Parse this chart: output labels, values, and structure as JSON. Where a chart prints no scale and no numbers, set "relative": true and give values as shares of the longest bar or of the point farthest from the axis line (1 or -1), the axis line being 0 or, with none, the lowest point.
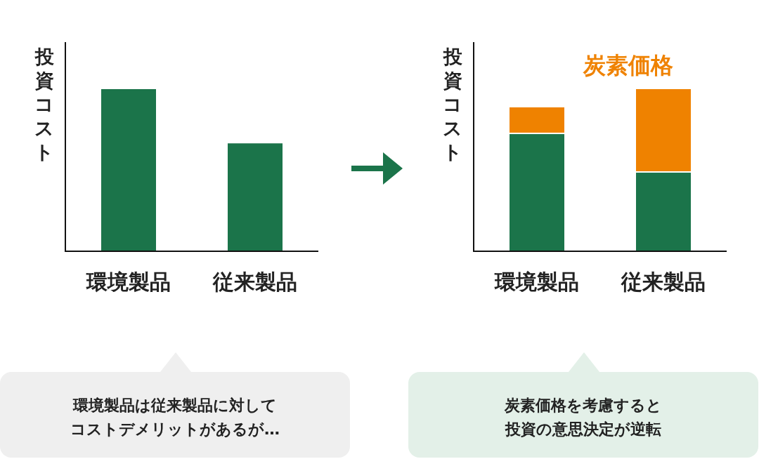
{
  "chart_data": [
    {
      "type": "bar",
      "ylabel": "投資コスト",
      "categories": [
        "環境製品",
        "従来製品"
      ],
      "relative": true,
      "series": [
        {
          "color": "#1b744a",
          "values": [
            1,
            0.667
          ]
        }
      ],
      "annotations": [
        "環境製品は従来製品に対して",
        "コストデメリットがあるが…"
      ]
    },
    {
      "type": "bar",
      "ylabel": "投資コスト",
      "categories": [
        "環境製品",
        "従来製品"
      ],
      "relative": true,
      "stacked": true,
      "series": [
        {
          "color": "#1b744a",
          "values": [
            0.724,
            0.487
          ]
        },
        {
          "name": "炭素価格",
          "color": "#ef8200",
          "values": [
            0.164,
            0.513
          ]
        }
      ],
      "annotations": [
        "炭素価格を考慮すると",
        "投資の意思決定が逆転"
      ]
    }
  ]
}
